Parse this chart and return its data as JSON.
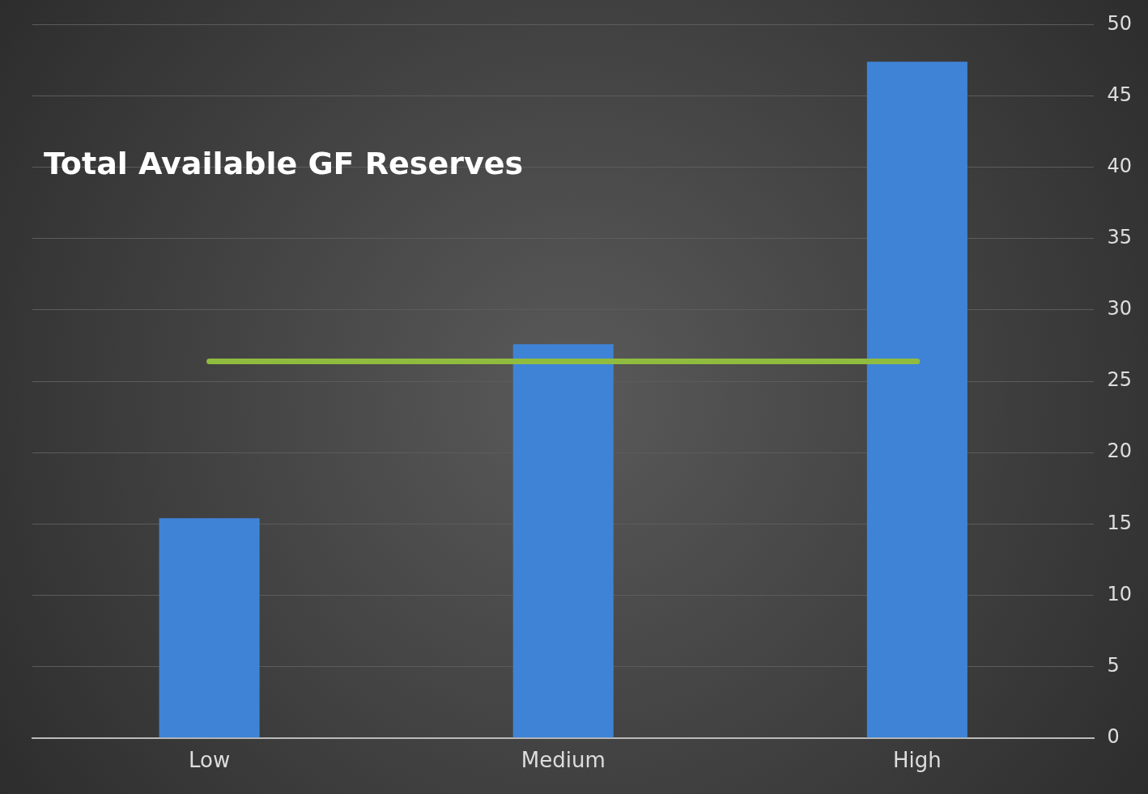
{
  "chart_data": {
    "type": "bar",
    "title": "Total Available GF Reserves",
    "categories": [
      "Low",
      "Medium",
      "High"
    ],
    "series": [
      {
        "color": "#3f83d6",
        "values": [
          15.4,
          27.6,
          47.4
        ]
      },
      {
        "type": "line",
        "color": "#8fbc3f",
        "values": [
          26.4,
          26.4,
          26.4
        ]
      }
    ],
    "ylim": [
      0,
      50
    ],
    "yticks": [
      0,
      5,
      10,
      15,
      20,
      25,
      30,
      35,
      40,
      45,
      50
    ],
    "grid": "y"
  }
}
